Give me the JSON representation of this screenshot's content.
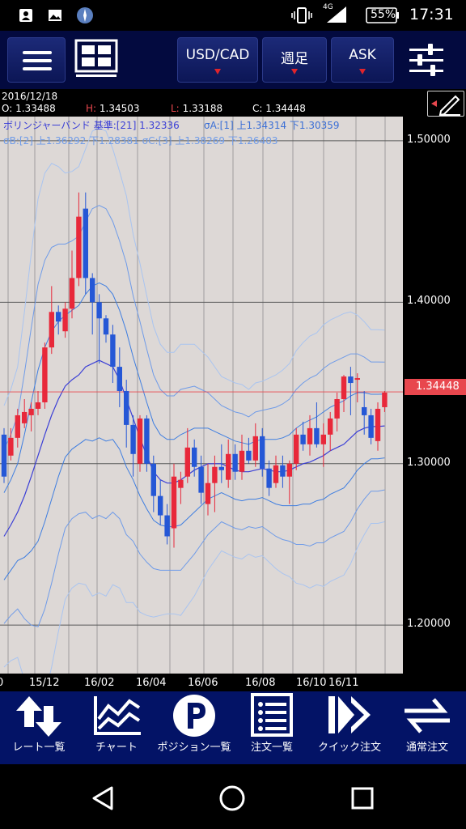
{
  "status_bar": {
    "network": "4G",
    "battery": "55%",
    "time": "17:31"
  },
  "toolbar": {
    "pair": "USD/CAD",
    "period": "週足",
    "side": "ASK"
  },
  "ohlc": {
    "date": "2016/12/18",
    "open_key": "O:",
    "open": "1.33488",
    "high_key": "H:",
    "high": "1.34503",
    "low_key": "L:",
    "low": "1.33188",
    "close_key": "C:",
    "close": "1.34448"
  },
  "bollinger": {
    "line1": "ボリンジャーバンド  基準:[21]  1.32336",
    "line1b": "σA:[1]  上1.34314  下1.30359",
    "line2": "σB:[2]  上1.36292  下1.28381  σC:[3]  上1.38269  下1.26403"
  },
  "colors": {
    "up": "#e8283a",
    "down": "#2557d6",
    "mid_band": "#3b3fd6",
    "outer_band": "#6f9be8",
    "current_line": "#e8474e"
  },
  "chart_data": {
    "type": "candlestick",
    "instrument": "USD/CAD",
    "timeframe": "週足",
    "y_ticks": [
      "1.50000",
      "1.40000",
      "1.30000",
      "1.20000"
    ],
    "x_ticks": [
      "15/12",
      "16/02",
      "16/04",
      "16/06",
      "16/08",
      "16/10",
      "16/11"
    ],
    "x_tick_left_cut": "0",
    "current_price": "1.34448",
    "ylim": [
      1.17,
      1.515
    ],
    "candles": [
      {
        "o": 1.318,
        "h": 1.322,
        "l": 1.288,
        "c": 1.292
      },
      {
        "o": 1.305,
        "h": 1.322,
        "l": 1.302,
        "c": 1.316
      },
      {
        "o": 1.316,
        "h": 1.334,
        "l": 1.31,
        "c": 1.33
      },
      {
        "o": 1.325,
        "h": 1.34,
        "l": 1.322,
        "c": 1.332
      },
      {
        "o": 1.33,
        "h": 1.338,
        "l": 1.32,
        "c": 1.334
      },
      {
        "o": 1.334,
        "h": 1.345,
        "l": 1.33,
        "c": 1.338
      },
      {
        "o": 1.338,
        "h": 1.375,
        "l": 1.334,
        "c": 1.372
      },
      {
        "o": 1.372,
        "h": 1.41,
        "l": 1.368,
        "c": 1.394
      },
      {
        "o": 1.394,
        "h": 1.398,
        "l": 1.38,
        "c": 1.388
      },
      {
        "o": 1.382,
        "h": 1.4,
        "l": 1.378,
        "c": 1.396
      },
      {
        "o": 1.396,
        "h": 1.432,
        "l": 1.39,
        "c": 1.415
      },
      {
        "o": 1.415,
        "h": 1.468,
        "l": 1.41,
        "c": 1.453
      },
      {
        "o": 1.458,
        "h": 1.468,
        "l": 1.405,
        "c": 1.415
      },
      {
        "o": 1.415,
        "h": 1.418,
        "l": 1.38,
        "c": 1.4
      },
      {
        "o": 1.4,
        "h": 1.405,
        "l": 1.362,
        "c": 1.39
      },
      {
        "o": 1.39,
        "h": 1.392,
        "l": 1.375,
        "c": 1.38
      },
      {
        "o": 1.38,
        "h": 1.386,
        "l": 1.35,
        "c": 1.36
      },
      {
        "o": 1.36,
        "h": 1.372,
        "l": 1.335,
        "c": 1.345
      },
      {
        "o": 1.345,
        "h": 1.352,
        "l": 1.31,
        "c": 1.324
      },
      {
        "o": 1.324,
        "h": 1.33,
        "l": 1.292,
        "c": 1.306
      },
      {
        "o": 1.3,
        "h": 1.33,
        "l": 1.295,
        "c": 1.328
      },
      {
        "o": 1.328,
        "h": 1.33,
        "l": 1.295,
        "c": 1.3
      },
      {
        "o": 1.3,
        "h": 1.305,
        "l": 1.27,
        "c": 1.28
      },
      {
        "o": 1.28,
        "h": 1.29,
        "l": 1.262,
        "c": 1.268
      },
      {
        "o": 1.268,
        "h": 1.275,
        "l": 1.25,
        "c": 1.255
      },
      {
        "o": 1.26,
        "h": 1.3,
        "l": 1.248,
        "c": 1.292
      },
      {
        "o": 1.285,
        "h": 1.295,
        "l": 1.275,
        "c": 1.29
      },
      {
        "o": 1.292,
        "h": 1.322,
        "l": 1.288,
        "c": 1.31
      },
      {
        "o": 1.31,
        "h": 1.315,
        "l": 1.292,
        "c": 1.298
      },
      {
        "o": 1.298,
        "h": 1.305,
        "l": 1.275,
        "c": 1.282
      },
      {
        "o": 1.275,
        "h": 1.3,
        "l": 1.268,
        "c": 1.288
      },
      {
        "o": 1.288,
        "h": 1.305,
        "l": 1.27,
        "c": 1.298
      },
      {
        "o": 1.298,
        "h": 1.312,
        "l": 1.288,
        "c": 1.296
      },
      {
        "o": 1.29,
        "h": 1.315,
        "l": 1.285,
        "c": 1.306
      },
      {
        "o": 1.306,
        "h": 1.312,
        "l": 1.29,
        "c": 1.295
      },
      {
        "o": 1.295,
        "h": 1.318,
        "l": 1.29,
        "c": 1.308
      },
      {
        "o": 1.308,
        "h": 1.316,
        "l": 1.3,
        "c": 1.302
      },
      {
        "o": 1.302,
        "h": 1.325,
        "l": 1.298,
        "c": 1.317
      },
      {
        "o": 1.317,
        "h": 1.322,
        "l": 1.292,
        "c": 1.297
      },
      {
        "o": 1.297,
        "h": 1.302,
        "l": 1.28,
        "c": 1.285
      },
      {
        "o": 1.288,
        "h": 1.305,
        "l": 1.285,
        "c": 1.299
      },
      {
        "o": 1.299,
        "h": 1.305,
        "l": 1.285,
        "c": 1.292
      },
      {
        "o": 1.292,
        "h": 1.302,
        "l": 1.275,
        "c": 1.3
      },
      {
        "o": 1.3,
        "h": 1.322,
        "l": 1.296,
        "c": 1.318
      },
      {
        "o": 1.318,
        "h": 1.326,
        "l": 1.308,
        "c": 1.312
      },
      {
        "o": 1.312,
        "h": 1.33,
        "l": 1.305,
        "c": 1.322
      },
      {
        "o": 1.322,
        "h": 1.338,
        "l": 1.31,
        "c": 1.312
      },
      {
        "o": 1.312,
        "h": 1.325,
        "l": 1.298,
        "c": 1.318
      },
      {
        "o": 1.318,
        "h": 1.332,
        "l": 1.308,
        "c": 1.328
      },
      {
        "o": 1.328,
        "h": 1.344,
        "l": 1.32,
        "c": 1.34
      },
      {
        "o": 1.34,
        "h": 1.355,
        "l": 1.332,
        "c": 1.354
      },
      {
        "o": 1.354,
        "h": 1.36,
        "l": 1.33,
        "c": 1.35
      },
      {
        "o": 1.352,
        "h": 1.356,
        "l": 1.338,
        "c": 1.353
      },
      {
        "o": 1.335,
        "h": 1.345,
        "l": 1.318,
        "c": 1.33
      },
      {
        "o": 1.33,
        "h": 1.334,
        "l": 1.312,
        "c": 1.316
      },
      {
        "o": 1.314,
        "h": 1.338,
        "l": 1.308,
        "c": 1.334
      },
      {
        "o": 1.335,
        "h": 1.345,
        "l": 1.332,
        "c": 1.344
      }
    ],
    "bands": {
      "mid": [
        1.255,
        1.262,
        1.27,
        1.28,
        1.292,
        1.305,
        1.318,
        1.33,
        1.34,
        1.348,
        1.352,
        1.355,
        1.36,
        1.362,
        1.364,
        1.362,
        1.36,
        1.352,
        1.34,
        1.328,
        1.316,
        1.305,
        1.295,
        1.29,
        1.288,
        1.288,
        1.29,
        1.293,
        1.296,
        1.298,
        1.3,
        1.3,
        1.3,
        1.298,
        1.296,
        1.295,
        1.295,
        1.296,
        1.297,
        1.296,
        1.295,
        1.295,
        1.296,
        1.298,
        1.3,
        1.301,
        1.303,
        1.305,
        1.308,
        1.31,
        1.312,
        1.316,
        1.32,
        1.322,
        1.323,
        1.323,
        1.3234
      ],
      "a_up": [
        1.282,
        1.29,
        1.3,
        1.318,
        1.338,
        1.358,
        1.372,
        1.382,
        1.388,
        1.392,
        1.395,
        1.398,
        1.405,
        1.41,
        1.412,
        1.41,
        1.405,
        1.395,
        1.382,
        1.366,
        1.352,
        1.338,
        1.325,
        1.318,
        1.315,
        1.315,
        1.318,
        1.32,
        1.322,
        1.322,
        1.322,
        1.32,
        1.318,
        1.316,
        1.314,
        1.313,
        1.312,
        1.314,
        1.315,
        1.315,
        1.315,
        1.316,
        1.318,
        1.322,
        1.325,
        1.327,
        1.329,
        1.332,
        1.335,
        1.337,
        1.339,
        1.342,
        1.344,
        1.344,
        1.343,
        1.343,
        1.3431
      ],
      "a_dn": [
        1.228,
        1.234,
        1.24,
        1.242,
        1.246,
        1.252,
        1.264,
        1.278,
        1.292,
        1.304,
        1.309,
        1.312,
        1.315,
        1.314,
        1.316,
        1.314,
        1.315,
        1.309,
        1.298,
        1.29,
        1.28,
        1.272,
        1.265,
        1.262,
        1.261,
        1.261,
        1.262,
        1.266,
        1.27,
        1.274,
        1.278,
        1.28,
        1.282,
        1.28,
        1.278,
        1.277,
        1.278,
        1.278,
        1.279,
        1.277,
        1.275,
        1.274,
        1.274,
        1.274,
        1.275,
        1.275,
        1.277,
        1.278,
        1.281,
        1.283,
        1.285,
        1.29,
        1.296,
        1.3,
        1.303,
        1.303,
        1.3036
      ],
      "b_up": [
        1.309,
        1.318,
        1.33,
        1.356,
        1.384,
        1.411,
        1.426,
        1.434,
        1.436,
        1.436,
        1.438,
        1.441,
        1.45,
        1.458,
        1.46,
        1.458,
        1.45,
        1.438,
        1.424,
        1.404,
        1.388,
        1.371,
        1.355,
        1.346,
        1.342,
        1.342,
        1.346,
        1.347,
        1.348,
        1.346,
        1.344,
        1.34,
        1.336,
        1.334,
        1.332,
        1.331,
        1.329,
        1.332,
        1.333,
        1.334,
        1.335,
        1.337,
        1.34,
        1.346,
        1.35,
        1.353,
        1.355,
        1.359,
        1.362,
        1.364,
        1.366,
        1.368,
        1.368,
        1.366,
        1.363,
        1.363,
        1.3629
      ],
      "b_dn": [
        1.201,
        1.206,
        1.21,
        1.204,
        1.2,
        1.199,
        1.21,
        1.226,
        1.244,
        1.26,
        1.266,
        1.269,
        1.27,
        1.266,
        1.268,
        1.266,
        1.27,
        1.266,
        1.256,
        1.252,
        1.244,
        1.239,
        1.235,
        1.234,
        1.234,
        1.234,
        1.234,
        1.239,
        1.244,
        1.25,
        1.256,
        1.26,
        1.264,
        1.262,
        1.26,
        1.259,
        1.261,
        1.26,
        1.261,
        1.258,
        1.255,
        1.253,
        1.252,
        1.25,
        1.25,
        1.249,
        1.251,
        1.251,
        1.254,
        1.256,
        1.258,
        1.264,
        1.272,
        1.278,
        1.283,
        1.283,
        1.2838
      ],
      "c_up": [
        1.336,
        1.346,
        1.36,
        1.394,
        1.43,
        1.464,
        1.48,
        1.486,
        1.484,
        1.48,
        1.481,
        1.484,
        1.495,
        1.506,
        1.508,
        1.506,
        1.495,
        1.481,
        1.466,
        1.442,
        1.424,
        1.404,
        1.385,
        1.374,
        1.369,
        1.369,
        1.374,
        1.374,
        1.374,
        1.37,
        1.366,
        1.36,
        1.354,
        1.352,
        1.35,
        1.349,
        1.346,
        1.35,
        1.351,
        1.353,
        1.355,
        1.358,
        1.362,
        1.37,
        1.375,
        1.379,
        1.381,
        1.386,
        1.389,
        1.391,
        1.393,
        1.394,
        1.392,
        1.388,
        1.383,
        1.383,
        1.3827
      ],
      "c_dn": [
        1.174,
        1.178,
        1.18,
        1.166,
        1.154,
        1.146,
        1.156,
        1.174,
        1.196,
        1.216,
        1.223,
        1.226,
        1.225,
        1.218,
        1.22,
        1.218,
        1.225,
        1.223,
        1.214,
        1.214,
        1.208,
        1.206,
        1.205,
        1.206,
        1.207,
        1.207,
        1.206,
        1.212,
        1.218,
        1.226,
        1.234,
        1.24,
        1.246,
        1.244,
        1.242,
        1.241,
        1.244,
        1.242,
        1.243,
        1.239,
        1.235,
        1.232,
        1.23,
        1.226,
        1.225,
        1.223,
        1.225,
        1.224,
        1.227,
        1.229,
        1.231,
        1.238,
        1.248,
        1.256,
        1.263,
        1.263,
        1.264
      ]
    }
  },
  "bottom_nav": [
    {
      "label": "レート一覧",
      "icon": "rate-list-icon"
    },
    {
      "label": "チャート",
      "icon": "chart-icon"
    },
    {
      "label": "ポジション一覧",
      "icon": "position-icon"
    },
    {
      "label": "注文一覧",
      "icon": "order-list-icon"
    },
    {
      "label": "クイック注文",
      "icon": "quick-order-icon"
    },
    {
      "label": "通常注文",
      "icon": "normal-order-icon"
    }
  ]
}
